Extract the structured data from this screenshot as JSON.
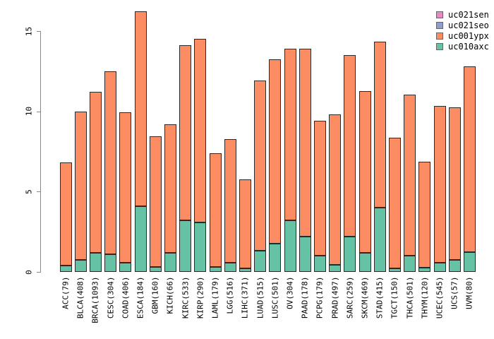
{
  "chart_data": {
    "type": "bar",
    "subtype": "stacked-vertical",
    "title": "",
    "xlabel": "",
    "ylabel": "",
    "ylim": [
      0,
      16.3
    ],
    "y_ticks": [
      0,
      5,
      10,
      15
    ],
    "grid": false,
    "legend_position": "top-right",
    "categories": [
      "ACC(79)",
      "BLCA(408)",
      "BRCA(1093)",
      "CESC(304)",
      "COAD(406)",
      "ESCA(184)",
      "GBM(160)",
      "KICH(66)",
      "KIRC(533)",
      "KIRP(290)",
      "LAML(179)",
      "LGG(516)",
      "LIHC(371)",
      "LUAD(515)",
      "LUSC(501)",
      "OV(304)",
      "PAAD(178)",
      "PCPG(179)",
      "PRAD(497)",
      "SARC(259)",
      "SKCM(469)",
      "STAD(415)",
      "TGCT(150)",
      "THCA(501)",
      "THYM(120)",
      "UCEC(545)",
      "UCS(57)",
      "UVM(80)"
    ],
    "stack_order_bottom_to_top": [
      "uc010axc",
      "uc001ypx",
      "uc021seo",
      "uc021sen"
    ],
    "series": [
      {
        "name": "uc021sen",
        "color": "#E78AC3",
        "values": [
          0,
          0,
          0,
          0,
          0,
          0,
          0,
          0,
          0,
          0,
          0,
          0,
          0,
          0,
          0,
          0,
          0,
          0,
          0,
          0,
          0,
          0,
          0,
          0,
          0,
          0,
          0,
          0
        ]
      },
      {
        "name": "uc021seo",
        "color": "#8DA0CB",
        "values": [
          0,
          0,
          0,
          0,
          0,
          0,
          0,
          0,
          0,
          0,
          0,
          0,
          0,
          0,
          0,
          0,
          0,
          0,
          0,
          0,
          0,
          0,
          0,
          0,
          0,
          0,
          0,
          0
        ]
      },
      {
        "name": "uc001ypx",
        "color": "#FC8D62",
        "values": [
          6.4,
          9.25,
          10.0,
          11.4,
          9.4,
          12.15,
          8.15,
          8.0,
          10.9,
          11.4,
          7.1,
          7.7,
          5.55,
          10.6,
          11.5,
          10.7,
          11.7,
          8.4,
          9.35,
          11.3,
          10.05,
          10.35,
          8.15,
          10.05,
          6.6,
          9.8,
          9.5,
          11.55
        ]
      },
      {
        "name": "uc010axc",
        "color": "#66C2A5",
        "values": [
          0.4,
          0.75,
          1.2,
          1.1,
          0.55,
          4.1,
          0.3,
          1.2,
          3.2,
          3.1,
          0.3,
          0.55,
          0.2,
          1.3,
          1.75,
          3.2,
          2.2,
          1.0,
          0.45,
          2.2,
          1.2,
          4.0,
          0.2,
          1.0,
          0.25,
          0.55,
          0.75,
          1.25
        ]
      }
    ],
    "bar_totals": [
      6.8,
      10.0,
      11.2,
      12.5,
      9.95,
      16.25,
      8.45,
      9.2,
      14.1,
      14.5,
      7.4,
      8.25,
      5.75,
      11.9,
      13.25,
      13.9,
      13.9,
      9.4,
      9.8,
      13.5,
      11.25,
      14.35,
      8.35,
      11.05,
      6.85,
      10.35,
      10.25,
      12.8
    ]
  },
  "colors": {
    "bar_border": "#2a2a2a",
    "axis": "#888888",
    "text": "#000000",
    "background": "#ffffff"
  }
}
